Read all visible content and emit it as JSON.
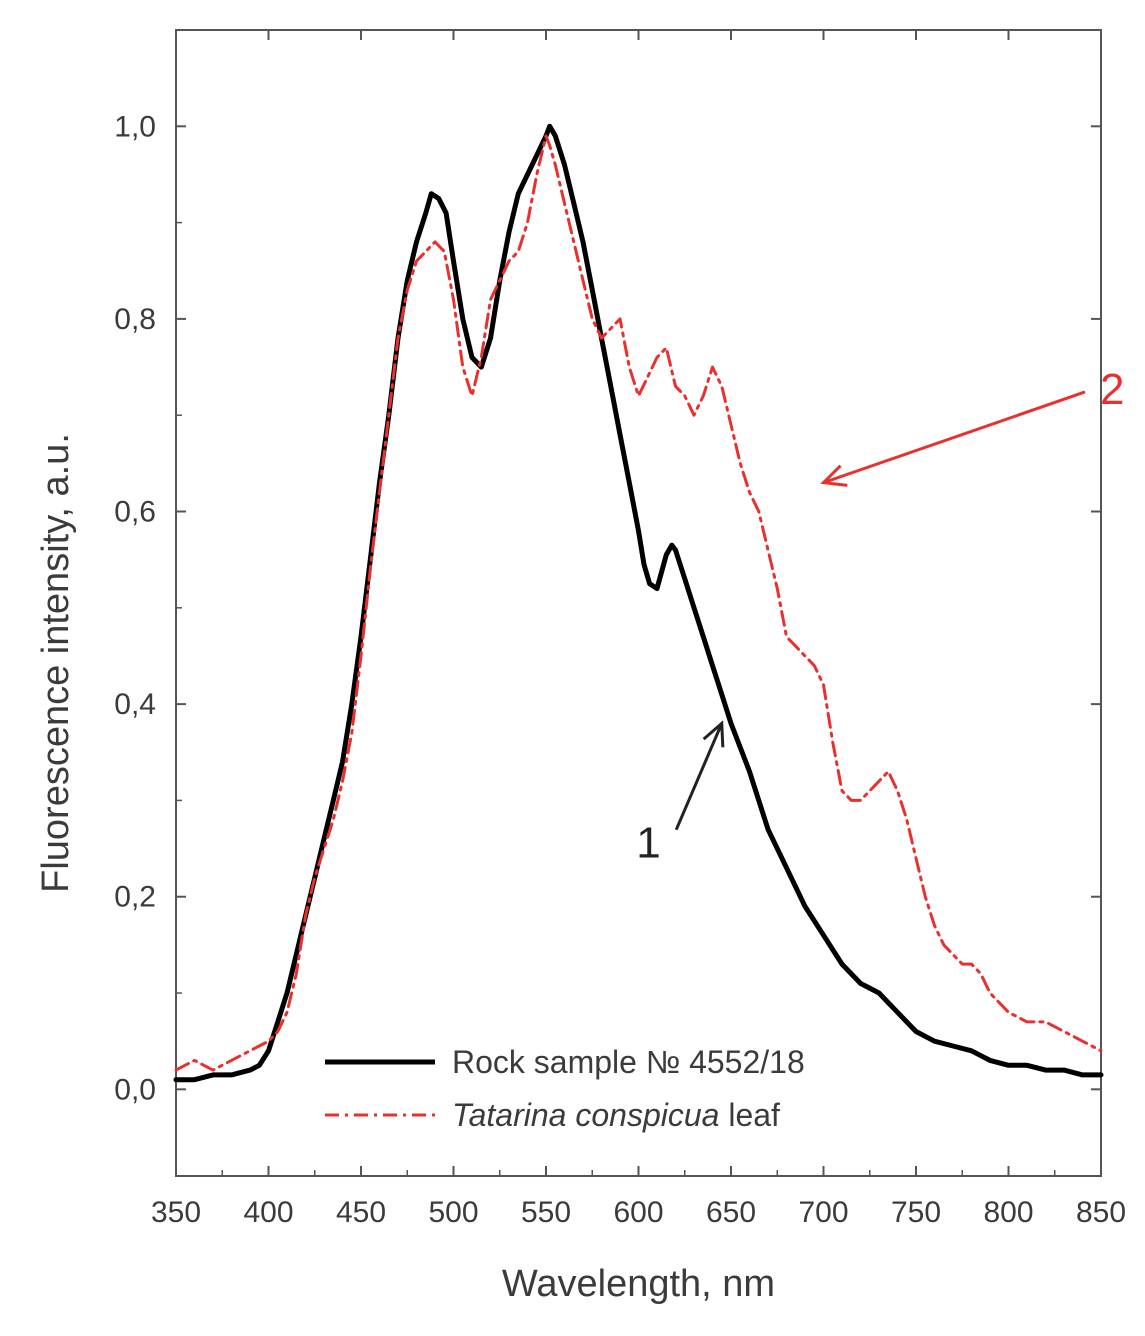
{
  "chart_data": {
    "type": "line",
    "xlabel": "Wavelength, nm",
    "ylabel": "Fluorescence intensity, a.u.",
    "xlim": [
      350,
      850
    ],
    "ylim": [
      -0.09,
      1.1
    ],
    "xticks": [
      350,
      400,
      450,
      500,
      550,
      600,
      650,
      700,
      750,
      800,
      850
    ],
    "yticks": [
      0.0,
      0.2,
      0.4,
      0.6,
      0.8,
      1.0
    ],
    "ytick_labels": [
      "0,0",
      "0,2",
      "0,4",
      "0,6",
      "0,8",
      "1,0"
    ],
    "grid": false,
    "legend_position": "bottom-center",
    "legend": [
      {
        "prefix": "Rock sample № 4552/18",
        "italic": "",
        "suffix": ""
      },
      {
        "prefix": "",
        "italic": "Tatarina conspicua",
        "suffix": " leaf"
      }
    ],
    "annotations": [
      {
        "text": "1",
        "color": "#222222",
        "points_to_series": 0,
        "x": 615,
        "y": 0.28,
        "target": [
          645,
          0.38
        ]
      },
      {
        "text": "2",
        "color": "#e8312f",
        "points_to_series": 1,
        "x": 790,
        "y": 0.72,
        "target": [
          700,
          0.63
        ]
      }
    ],
    "series": [
      {
        "label": "1",
        "color": "#000000",
        "style": "solid",
        "x": [
          350,
          360,
          370,
          380,
          390,
          395,
          400,
          405,
          410,
          415,
          420,
          425,
          430,
          435,
          440,
          445,
          450,
          455,
          460,
          465,
          470,
          475,
          480,
          485,
          488,
          492,
          496,
          500,
          505,
          510,
          515,
          520,
          525,
          530,
          535,
          540,
          545,
          550,
          552,
          555,
          560,
          565,
          570,
          575,
          580,
          585,
          590,
          595,
          600,
          603,
          606,
          610,
          615,
          618,
          620,
          625,
          630,
          635,
          640,
          645,
          650,
          660,
          670,
          680,
          690,
          700,
          710,
          720,
          730,
          740,
          750,
          760,
          770,
          780,
          790,
          800,
          810,
          820,
          830,
          840,
          850
        ],
        "y": [
          0.01,
          0.01,
          0.015,
          0.015,
          0.02,
          0.025,
          0.04,
          0.07,
          0.1,
          0.14,
          0.18,
          0.22,
          0.26,
          0.3,
          0.34,
          0.4,
          0.47,
          0.55,
          0.63,
          0.7,
          0.78,
          0.84,
          0.88,
          0.91,
          0.93,
          0.925,
          0.91,
          0.86,
          0.8,
          0.76,
          0.75,
          0.78,
          0.84,
          0.89,
          0.93,
          0.95,
          0.97,
          0.99,
          1.0,
          0.99,
          0.96,
          0.92,
          0.88,
          0.83,
          0.78,
          0.73,
          0.68,
          0.63,
          0.58,
          0.545,
          0.525,
          0.52,
          0.555,
          0.565,
          0.56,
          0.53,
          0.5,
          0.47,
          0.44,
          0.41,
          0.38,
          0.33,
          0.27,
          0.23,
          0.19,
          0.16,
          0.13,
          0.11,
          0.1,
          0.08,
          0.06,
          0.05,
          0.045,
          0.04,
          0.03,
          0.025,
          0.025,
          0.02,
          0.02,
          0.015,
          0.015
        ]
      },
      {
        "label": "2",
        "color": "#e8312f",
        "style": "dashdot",
        "x": [
          350,
          360,
          370,
          380,
          390,
          400,
          405,
          410,
          415,
          420,
          425,
          430,
          435,
          440,
          445,
          450,
          455,
          460,
          465,
          470,
          475,
          480,
          485,
          490,
          495,
          500,
          505,
          510,
          515,
          520,
          525,
          530,
          535,
          540,
          545,
          550,
          552,
          555,
          560,
          565,
          570,
          575,
          580,
          585,
          590,
          595,
          600,
          605,
          610,
          615,
          620,
          625,
          630,
          635,
          640,
          645,
          650,
          655,
          660,
          665,
          670,
          675,
          680,
          685,
          690,
          695,
          700,
          705,
          710,
          715,
          720,
          725,
          730,
          735,
          740,
          745,
          750,
          755,
          760,
          765,
          770,
          775,
          780,
          785,
          790,
          795,
          800,
          810,
          820,
          830,
          840,
          850
        ],
        "y": [
          0.02,
          0.03,
          0.02,
          0.03,
          0.04,
          0.05,
          0.06,
          0.08,
          0.12,
          0.18,
          0.22,
          0.25,
          0.28,
          0.32,
          0.37,
          0.45,
          0.54,
          0.62,
          0.7,
          0.78,
          0.83,
          0.86,
          0.87,
          0.88,
          0.87,
          0.82,
          0.75,
          0.72,
          0.76,
          0.82,
          0.84,
          0.86,
          0.87,
          0.9,
          0.95,
          0.99,
          0.98,
          0.96,
          0.92,
          0.88,
          0.84,
          0.8,
          0.78,
          0.79,
          0.8,
          0.75,
          0.72,
          0.74,
          0.76,
          0.77,
          0.73,
          0.72,
          0.7,
          0.72,
          0.75,
          0.73,
          0.69,
          0.65,
          0.62,
          0.6,
          0.56,
          0.52,
          0.47,
          0.46,
          0.45,
          0.44,
          0.42,
          0.36,
          0.31,
          0.3,
          0.3,
          0.31,
          0.32,
          0.33,
          0.31,
          0.28,
          0.24,
          0.2,
          0.17,
          0.15,
          0.14,
          0.13,
          0.13,
          0.12,
          0.1,
          0.09,
          0.08,
          0.07,
          0.07,
          0.06,
          0.05,
          0.04
        ]
      }
    ]
  }
}
